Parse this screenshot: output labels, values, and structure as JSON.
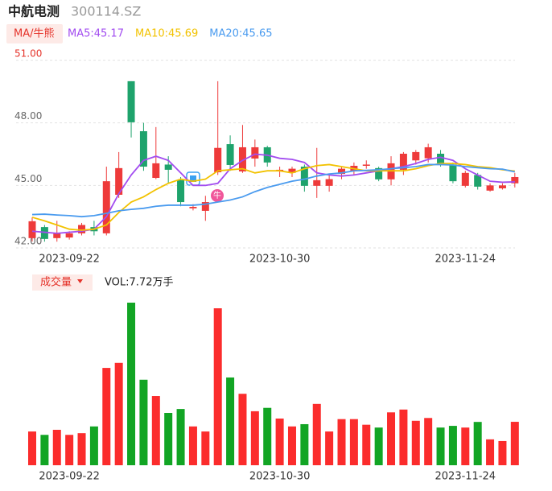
{
  "header": {
    "name": "中航电测",
    "code": "300114.SZ"
  },
  "chart_data": [
    {
      "type": "candlestick",
      "legend_title": "MA/牛熊",
      "signal_label": "牛",
      "categories": [
        null,
        null,
        null,
        "2023-09-22",
        null,
        null,
        null,
        null,
        null,
        null,
        null,
        null,
        null,
        null,
        null,
        null,
        null,
        null,
        null,
        null,
        "2023-10-30",
        null,
        null,
        null,
        null,
        null,
        null,
        null,
        null,
        null,
        null,
        null,
        null,
        null,
        null,
        "2023-11-24",
        null,
        null,
        null,
        null
      ],
      "open": [
        42.47,
        43.0,
        42.47,
        42.5,
        42.7,
        43.0,
        42.7,
        44.55,
        50.0,
        47.6,
        45.36,
        46.0,
        45.25,
        43.9,
        43.78,
        45.63,
        46.98,
        45.67,
        46.29,
        46.83,
        45.67,
        45.6,
        45.9,
        44.98,
        44.98,
        45.55,
        45.7,
        45.94,
        45.83,
        45.29,
        45.75,
        46.2,
        46.3,
        46.52,
        46.0,
        44.98,
        45.5,
        44.75,
        44.86,
        45.1
      ],
      "close": [
        43.28,
        42.43,
        42.7,
        42.7,
        43.1,
        42.8,
        45.2,
        45.83,
        48.03,
        45.9,
        46.06,
        45.75,
        44.2,
        43.97,
        44.2,
        46.8,
        45.98,
        46.83,
        46.83,
        46.1,
        45.75,
        45.8,
        44.98,
        45.25,
        45.3,
        45.8,
        45.94,
        46.0,
        45.29,
        46.06,
        46.52,
        46.6,
        46.83,
        46.06,
        45.2,
        45.6,
        44.94,
        45.0,
        45.0,
        45.4
      ],
      "high": [
        43.47,
        43.1,
        43.3,
        42.8,
        43.2,
        43.3,
        45.9,
        46.6,
        50.0,
        48.0,
        47.8,
        46.4,
        45.4,
        44.1,
        44.5,
        50.0,
        47.4,
        47.9,
        47.2,
        46.9,
        45.9,
        45.9,
        46.0,
        46.8,
        45.5,
        45.9,
        46.1,
        46.2,
        45.9,
        46.4,
        46.6,
        46.7,
        47.0,
        46.7,
        46.1,
        45.7,
        45.6,
        45.1,
        45.1,
        45.6
      ],
      "low": [
        42.31,
        42.3,
        42.3,
        42.4,
        42.6,
        42.6,
        42.6,
        44.4,
        47.3,
        45.7,
        45.3,
        45.1,
        44.0,
        43.8,
        43.3,
        45.5,
        45.7,
        45.6,
        45.9,
        45.9,
        45.4,
        45.4,
        44.7,
        44.4,
        44.7,
        45.3,
        45.5,
        45.8,
        45.2,
        45.0,
        45.5,
        46.0,
        46.1,
        45.9,
        45.1,
        44.9,
        44.8,
        44.7,
        44.8,
        44.9
      ],
      "up_color": "#ee3a3a",
      "down_color": "#1ea36c",
      "series": [
        {
          "name": "MA5:45.17",
          "color": "#a24cf0",
          "values": [
            42.8,
            42.75,
            42.7,
            42.75,
            42.8,
            42.9,
            43.5,
            44.6,
            45.5,
            46.2,
            46.4,
            46.2,
            45.6,
            45.0,
            45.0,
            45.1,
            45.8,
            46.2,
            46.5,
            46.45,
            46.3,
            46.25,
            46.1,
            45.6,
            45.5,
            45.45,
            45.5,
            45.6,
            45.7,
            45.8,
            45.9,
            46.05,
            46.25,
            46.35,
            46.2,
            45.8,
            45.5,
            45.2,
            45.15,
            45.17
          ]
        },
        {
          "name": "MA10:45.69",
          "color": "#f2c200",
          "values": [
            43.47,
            43.3,
            43.1,
            42.9,
            42.85,
            42.9,
            43.1,
            43.7,
            44.2,
            44.45,
            44.8,
            45.1,
            45.3,
            45.2,
            45.3,
            45.7,
            45.75,
            45.8,
            45.6,
            45.7,
            45.7,
            45.6,
            45.8,
            45.95,
            46.0,
            45.9,
            45.8,
            45.7,
            45.7,
            45.7,
            45.7,
            45.8,
            45.95,
            46.05,
            46.05,
            46.0,
            45.9,
            45.85,
            45.75,
            45.69
          ]
        },
        {
          "name": "MA20:45.65",
          "color": "#4a9bef",
          "values": [
            43.6,
            43.62,
            43.58,
            43.55,
            43.5,
            43.55,
            43.66,
            43.78,
            43.85,
            43.9,
            44.0,
            44.05,
            44.05,
            44.05,
            44.1,
            44.2,
            44.3,
            44.45,
            44.7,
            44.9,
            45.05,
            45.2,
            45.3,
            45.45,
            45.55,
            45.6,
            45.7,
            45.72,
            45.75,
            45.8,
            45.85,
            45.9,
            46.0,
            46.0,
            45.98,
            45.9,
            45.85,
            45.8,
            45.78,
            45.65
          ]
        }
      ],
      "ylim": [
        42.0,
        51.0
      ],
      "yticks": [
        {
          "value": 51,
          "label": "51.00"
        },
        {
          "value": 48,
          "label": "48.00"
        },
        {
          "value": 45,
          "label": "45.00"
        },
        {
          "value": 42,
          "label": "42.00"
        }
      ],
      "grid": true
    },
    {
      "type": "bar",
      "title": "成交量",
      "subtitle": "VOL:7.72万手",
      "up_color": "#fb2c2c",
      "down_color": "#12a524",
      "values": [
        6.0,
        5.4,
        6.3,
        5.4,
        5.7,
        6.9,
        17.3,
        18.2,
        28.9,
        15.2,
        12.3,
        9.3,
        10.0,
        6.9,
        6.0,
        27.9,
        15.6,
        12.7,
        9.6,
        10.2,
        8.3,
        6.9,
        7.3,
        10.9,
        6.0,
        8.2,
        8.2,
        7.2,
        6.7,
        9.4,
        9.9,
        7.9,
        8.4,
        6.7,
        7.0,
        6.7,
        7.7,
        4.6,
        4.3,
        7.72
      ],
      "ylim": [
        0,
        30
      ]
    }
  ]
}
